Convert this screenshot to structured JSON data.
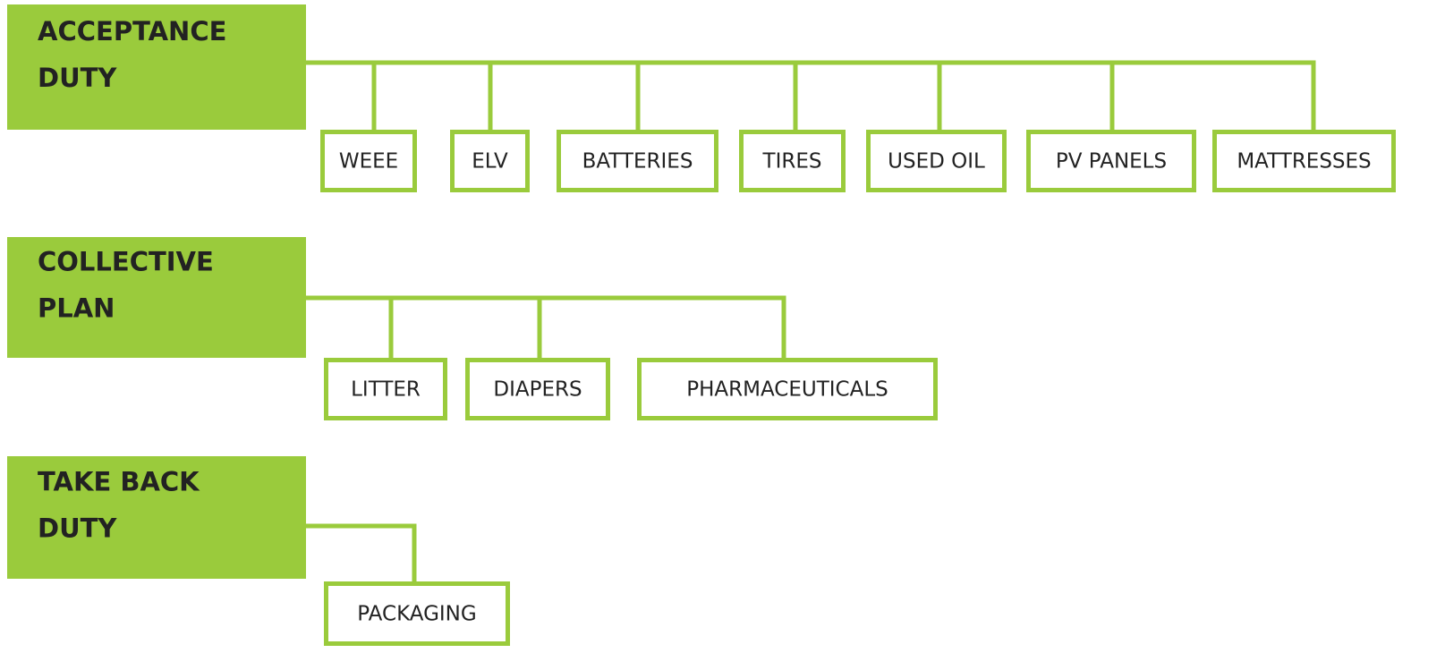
{
  "groups": [
    {
      "label_lines": [
        "ACCEPTANCE",
        "DUTY"
      ],
      "children": [
        "WEEE",
        "ELV",
        "BATTERIES",
        "TIRES",
        "USED OIL",
        "PV PANELS",
        "MATTRESSES"
      ]
    },
    {
      "label_lines": [
        "COLLECTIVE",
        "PLAN"
      ],
      "children": [
        "LITTER",
        "DIAPERS",
        "PHARMACEUTICALS"
      ]
    },
    {
      "label_lines": [
        "TAKE BACK",
        "DUTY"
      ],
      "children": [
        "PACKAGING"
      ]
    }
  ]
}
